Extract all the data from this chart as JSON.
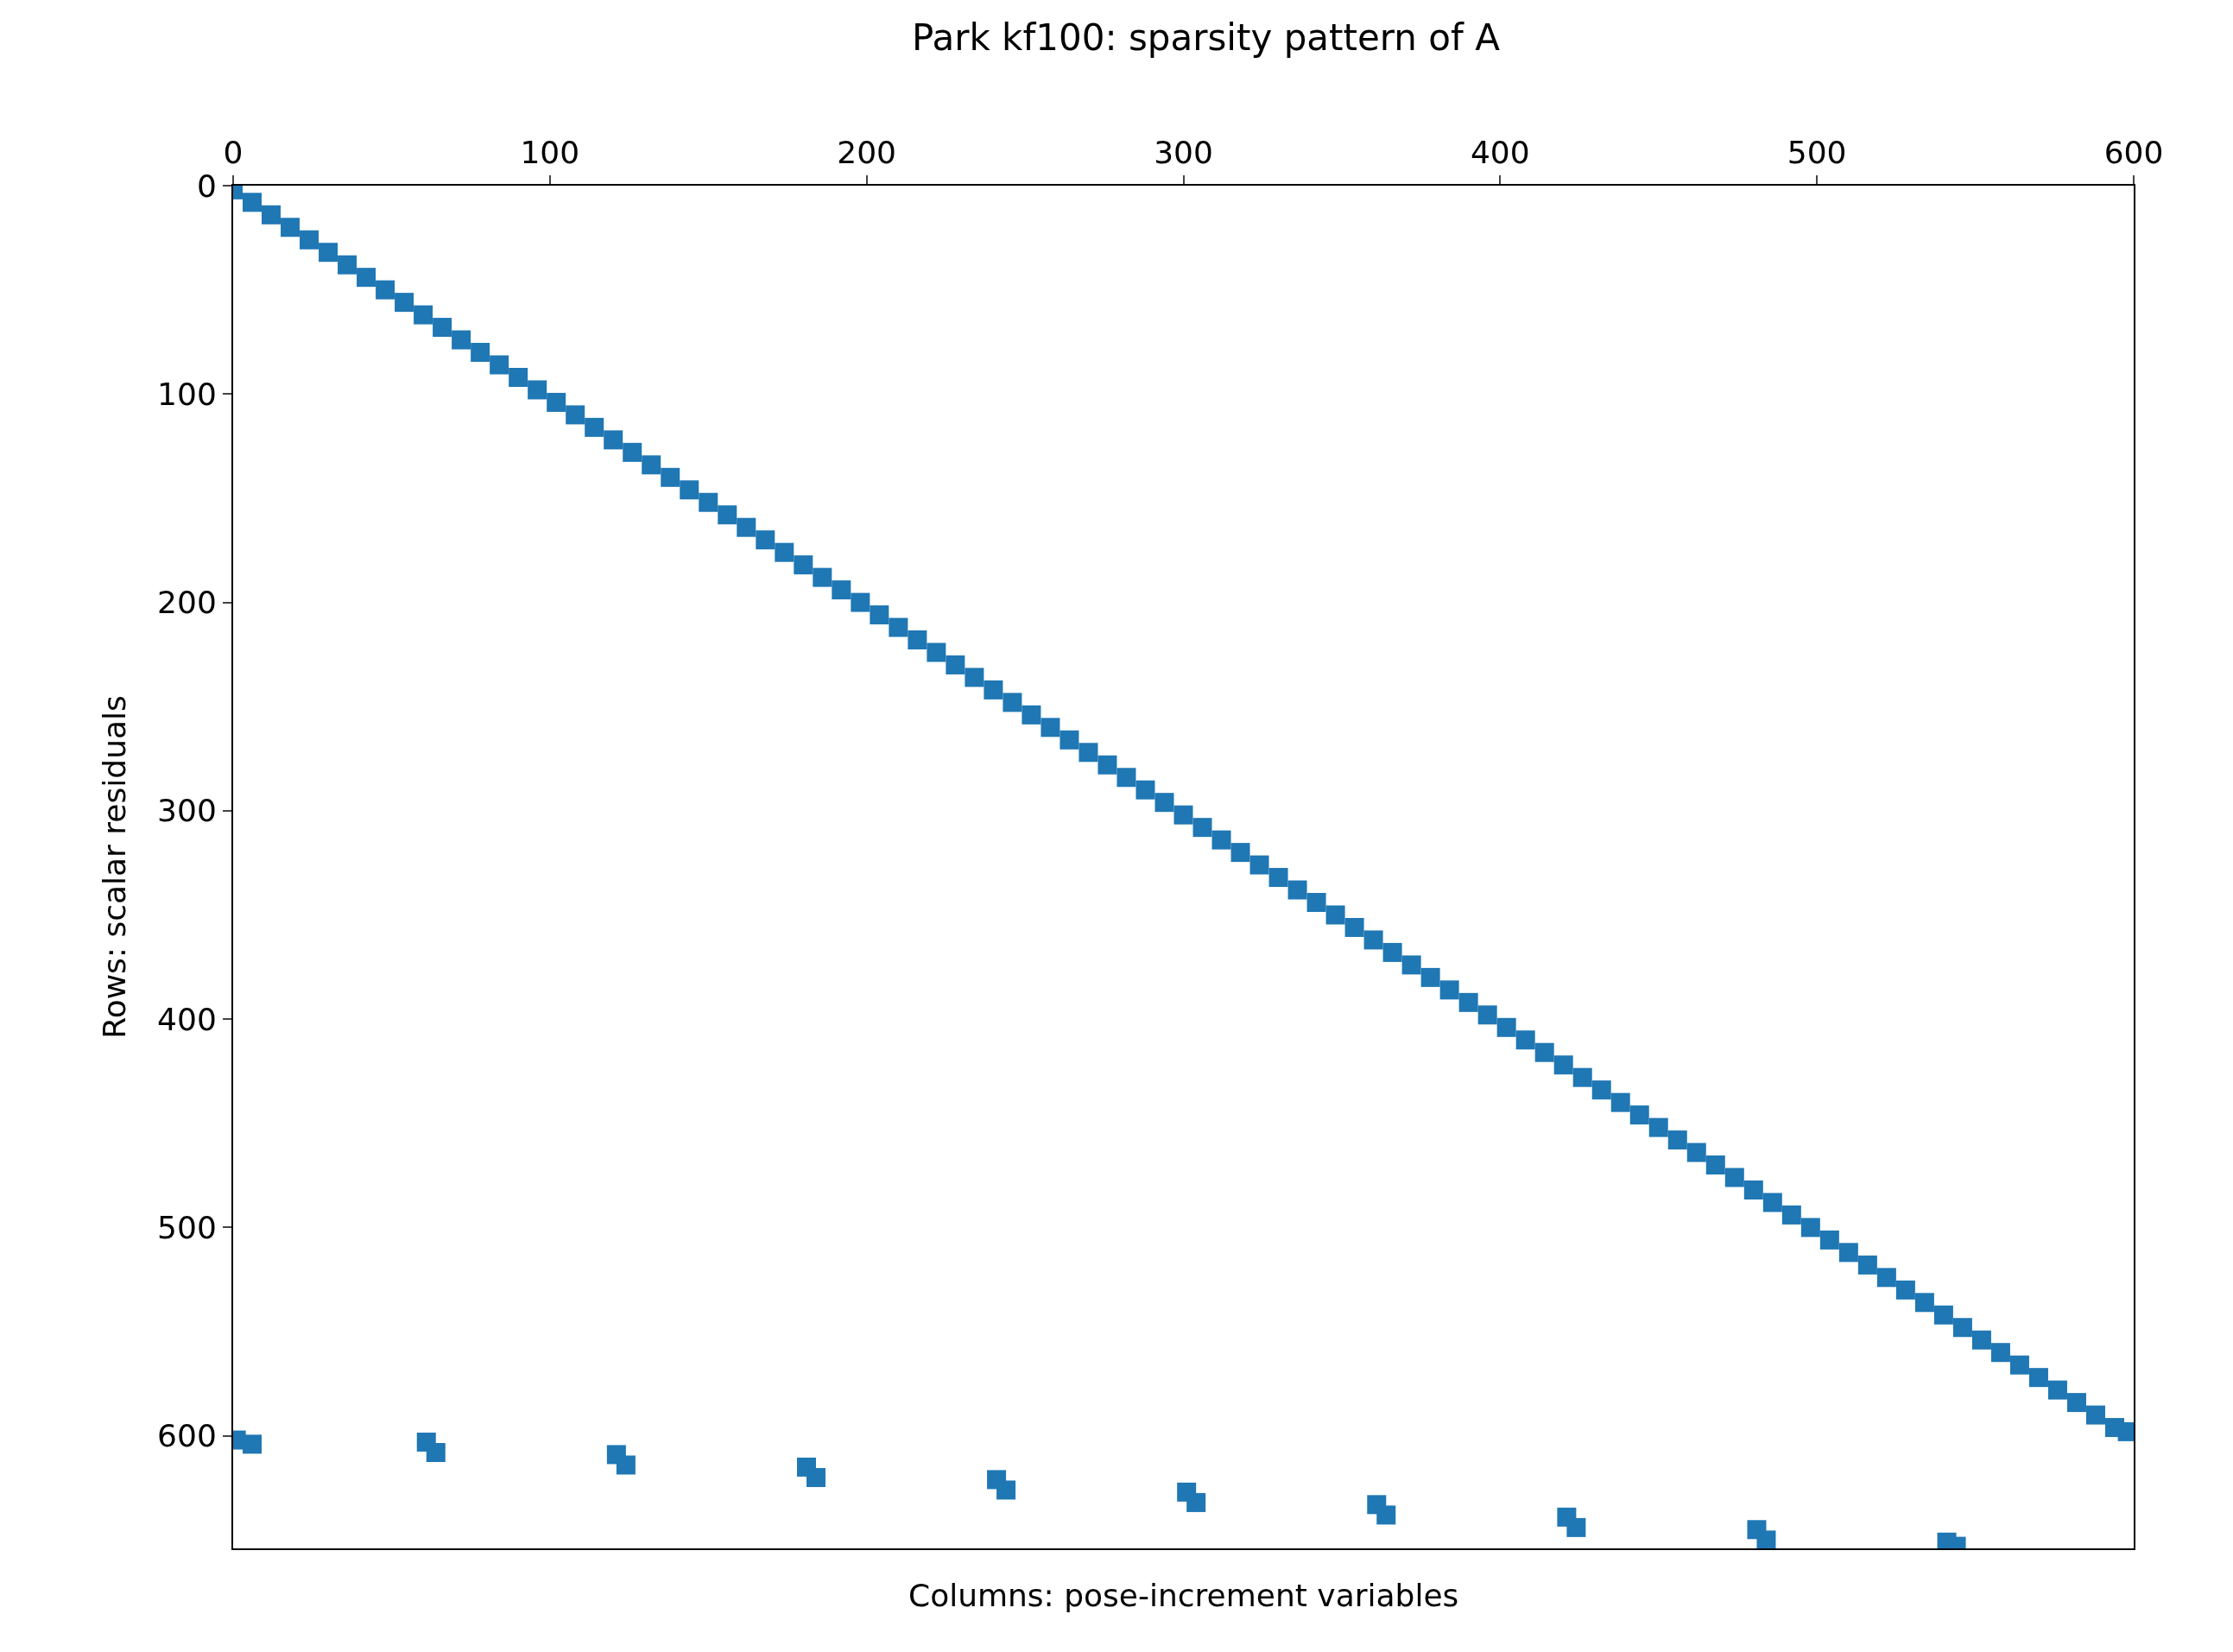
{
  "chart_data": {
    "type": "scatter",
    "title": "Park kf100: sparsity pattern of A",
    "xlabel": "Columns: pose-increment variables",
    "ylabel": "Rows: scalar residuals",
    "series": [
      {
        "color": "#1f77b4",
        "x": [
          0,
          6,
          12,
          18,
          24,
          30,
          36,
          42,
          48,
          54,
          60,
          66,
          72,
          78,
          84,
          90,
          96,
          102,
          108,
          114,
          120,
          126,
          132,
          138,
          144,
          150,
          156,
          162,
          168,
          174,
          180,
          186,
          192,
          198,
          204,
          210,
          216,
          222,
          228,
          234,
          240,
          246,
          252,
          258,
          264,
          270,
          276,
          282,
          288,
          294,
          300,
          306,
          312,
          318,
          324,
          330,
          336,
          342,
          348,
          354,
          360,
          366,
          372,
          378,
          384,
          390,
          396,
          402,
          408,
          414,
          420,
          426,
          432,
          438,
          444,
          450,
          456,
          462,
          468,
          474,
          480,
          486,
          492,
          498,
          504,
          510,
          516,
          522,
          528,
          534,
          540,
          546,
          552,
          558,
          564,
          570,
          576,
          582,
          588,
          594,
          598
        ],
        "values": [
          2,
          8,
          14,
          20,
          26,
          32,
          38,
          44,
          50,
          56,
          62,
          68,
          74,
          80,
          86,
          92,
          98,
          104,
          110,
          116,
          122,
          128,
          134,
          140,
          146,
          152,
          158,
          164,
          170,
          176,
          182,
          188,
          194,
          200,
          206,
          212,
          218,
          224,
          230,
          236,
          242,
          248,
          254,
          260,
          266,
          272,
          278,
          284,
          290,
          296,
          302,
          308,
          314,
          320,
          326,
          332,
          338,
          344,
          350,
          356,
          362,
          368,
          374,
          380,
          386,
          392,
          398,
          404,
          410,
          416,
          422,
          428,
          434,
          440,
          446,
          452,
          458,
          464,
          470,
          476,
          482,
          488,
          494,
          500,
          506,
          512,
          518,
          524,
          530,
          536,
          542,
          548,
          554,
          560,
          566,
          572,
          578,
          584,
          590,
          596,
          598
        ]
      },
      {
        "color": "#1f77b4",
        "x": [
          1,
          6,
          61,
          64,
          121,
          124,
          181,
          184,
          241,
          244,
          301,
          304,
          361,
          364,
          421,
          424,
          481,
          484,
          541,
          544
        ],
        "values": [
          602,
          604,
          603,
          608,
          609,
          614,
          615,
          620,
          621,
          626,
          627,
          632,
          633,
          638,
          639,
          644,
          645,
          650,
          651,
          653
        ]
      }
    ],
    "xlim": [
      0,
      600
    ],
    "ylim": [
      654,
      0
    ],
    "xticks": [
      0,
      100,
      200,
      300,
      400,
      500,
      600
    ],
    "yticks": [
      0,
      100,
      200,
      300,
      400,
      500,
      600
    ],
    "marker": "square"
  }
}
